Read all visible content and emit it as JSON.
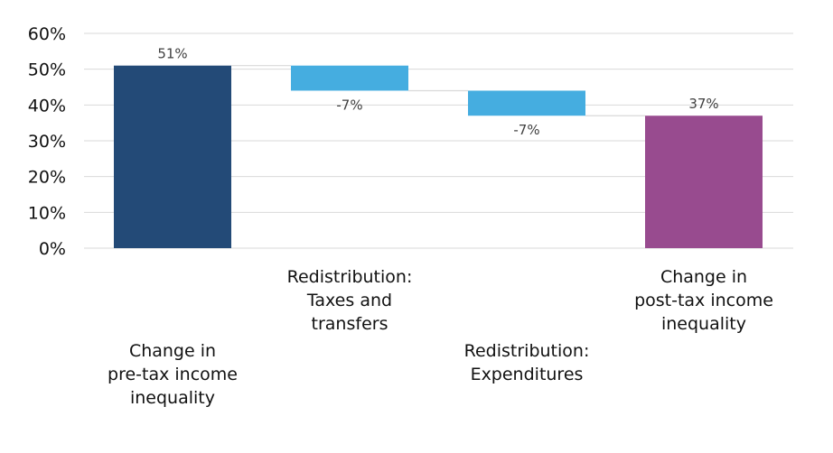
{
  "chart_data": {
    "type": "waterfall",
    "title": "",
    "xlabel": "",
    "ylabel": "",
    "ylim": [
      0,
      60
    ],
    "yticks": [
      0,
      10,
      20,
      30,
      40,
      50,
      60
    ],
    "ytick_labels": [
      "0%",
      "10%",
      "20%",
      "30%",
      "40%",
      "50%",
      "60%"
    ],
    "grid": true,
    "categories": [
      "Change in\npre-tax income\ninequality",
      "Redistribution:\nTaxes and\ntransfers",
      "Redistribution:\nExpenditures",
      "Change in\npost-tax income\ninequality"
    ],
    "bars": [
      {
        "start": 0,
        "end": 51,
        "label": "51%",
        "color": "#234a77",
        "kind": "total"
      },
      {
        "start": 51,
        "end": 44,
        "label": "-7%",
        "color": "#45ade0",
        "kind": "delta"
      },
      {
        "start": 44,
        "end": 37,
        "label": "-7%",
        "color": "#45ade0",
        "kind": "delta"
      },
      {
        "start": 0,
        "end": 37,
        "label": "37%",
        "color": "#984b8f",
        "kind": "total"
      }
    ]
  }
}
